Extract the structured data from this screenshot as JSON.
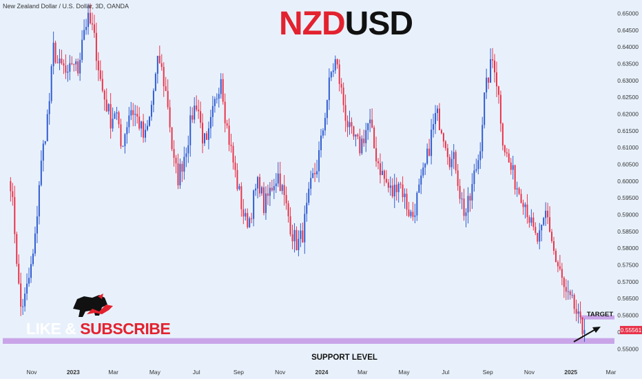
{
  "header": {
    "title_text": "New Zealand Dollar / U.S. Dollar, 3D, OANDA"
  },
  "branding": {
    "title_part1": "NZD",
    "title_part2": "USD",
    "cta_part1": "LIKE & ",
    "cta_part2": "SUBSCRIBE"
  },
  "annotations": {
    "support_label": "SUPPORT LEVEL",
    "target_label": "TARGET"
  },
  "colors": {
    "background": "#e8f1fb",
    "bull_candle": "#2f5bd0",
    "bear_candle": "#e8334a",
    "support_zone": "#c9a5e8",
    "target_zone": "#c9a5e8",
    "title_accent": "#e3222f"
  },
  "chart_data": {
    "type": "candlestick",
    "symbol": "NZDUSD",
    "interval": "3D",
    "grid": false,
    "y_axis": {
      "side": "right",
      "range": [
        0.548,
        0.654
      ],
      "tick_labels": [
        "0.65000",
        "0.64500",
        "0.64000",
        "0.63500",
        "0.63000",
        "0.62500",
        "0.62000",
        "0.61500",
        "0.61000",
        "0.60500",
        "0.60000",
        "0.59500",
        "0.59000",
        "0.58500",
        "0.58000",
        "0.57500",
        "0.57000",
        "0.56500",
        "0.56000",
        "0.55500",
        "0.55000"
      ],
      "tick_values": [
        0.65,
        0.645,
        0.64,
        0.635,
        0.63,
        0.625,
        0.62,
        0.615,
        0.61,
        0.605,
        0.6,
        0.595,
        0.59,
        0.585,
        0.58,
        0.575,
        0.57,
        0.565,
        0.56,
        0.555,
        0.55
      ]
    },
    "x_axis": {
      "tick_labels": [
        "Nov",
        "2023",
        "Mar",
        "May",
        "Jul",
        "Sep",
        "Nov",
        "2024",
        "Mar",
        "May",
        "Jul",
        "Sep",
        "Nov",
        "2025",
        "Mar"
      ],
      "tick_dates": [
        "2022-11-01",
        "2023-01-01",
        "2023-03-01",
        "2023-05-01",
        "2023-07-01",
        "2023-09-01",
        "2023-11-01",
        "2024-01-01",
        "2024-03-01",
        "2024-05-01",
        "2024-07-01",
        "2024-09-01",
        "2024-11-01",
        "2025-01-01",
        "2025-03-01"
      ],
      "bold_labels": [
        "2023",
        "2024",
        "2025"
      ]
    },
    "last_price": "0.55561",
    "first_candle_date": "2022-10-01",
    "candle_interval_days": 3,
    "support_zone": [
      0.5515,
      0.5532
    ],
    "target_zone": [
      0.5592,
      0.56
    ],
    "path_closes": [
      0.6,
      0.583,
      0.562,
      0.565,
      0.572,
      0.58,
      0.6,
      0.612,
      0.622,
      0.64,
      0.634,
      0.634,
      0.63,
      0.637,
      0.632,
      0.644,
      0.648,
      0.646,
      0.638,
      0.628,
      0.623,
      0.618,
      0.622,
      0.61,
      0.615,
      0.622,
      0.62,
      0.617,
      0.612,
      0.618,
      0.628,
      0.637,
      0.63,
      0.622,
      0.606,
      0.601,
      0.606,
      0.612,
      0.62,
      0.624,
      0.614,
      0.61,
      0.618,
      0.625,
      0.632,
      0.618,
      0.61,
      0.602,
      0.595,
      0.588,
      0.589,
      0.596,
      0.6,
      0.592,
      0.596,
      0.6,
      0.602,
      0.596,
      0.59,
      0.584,
      0.581,
      0.584,
      0.592,
      0.6,
      0.604,
      0.612,
      0.623,
      0.632,
      0.636,
      0.628,
      0.62,
      0.614,
      0.612,
      0.61,
      0.614,
      0.618,
      0.61,
      0.605,
      0.601,
      0.598,
      0.596,
      0.601,
      0.597,
      0.592,
      0.589,
      0.595,
      0.6,
      0.606,
      0.614,
      0.62,
      0.617,
      0.612,
      0.606,
      0.606,
      0.596,
      0.59,
      0.594,
      0.602,
      0.608,
      0.624,
      0.632,
      0.637,
      0.626,
      0.612,
      0.606,
      0.602,
      0.598,
      0.596,
      0.592,
      0.586,
      0.582,
      0.584,
      0.591,
      0.584,
      0.576,
      0.572,
      0.566,
      0.564,
      0.562,
      0.557,
      0.554
    ]
  }
}
